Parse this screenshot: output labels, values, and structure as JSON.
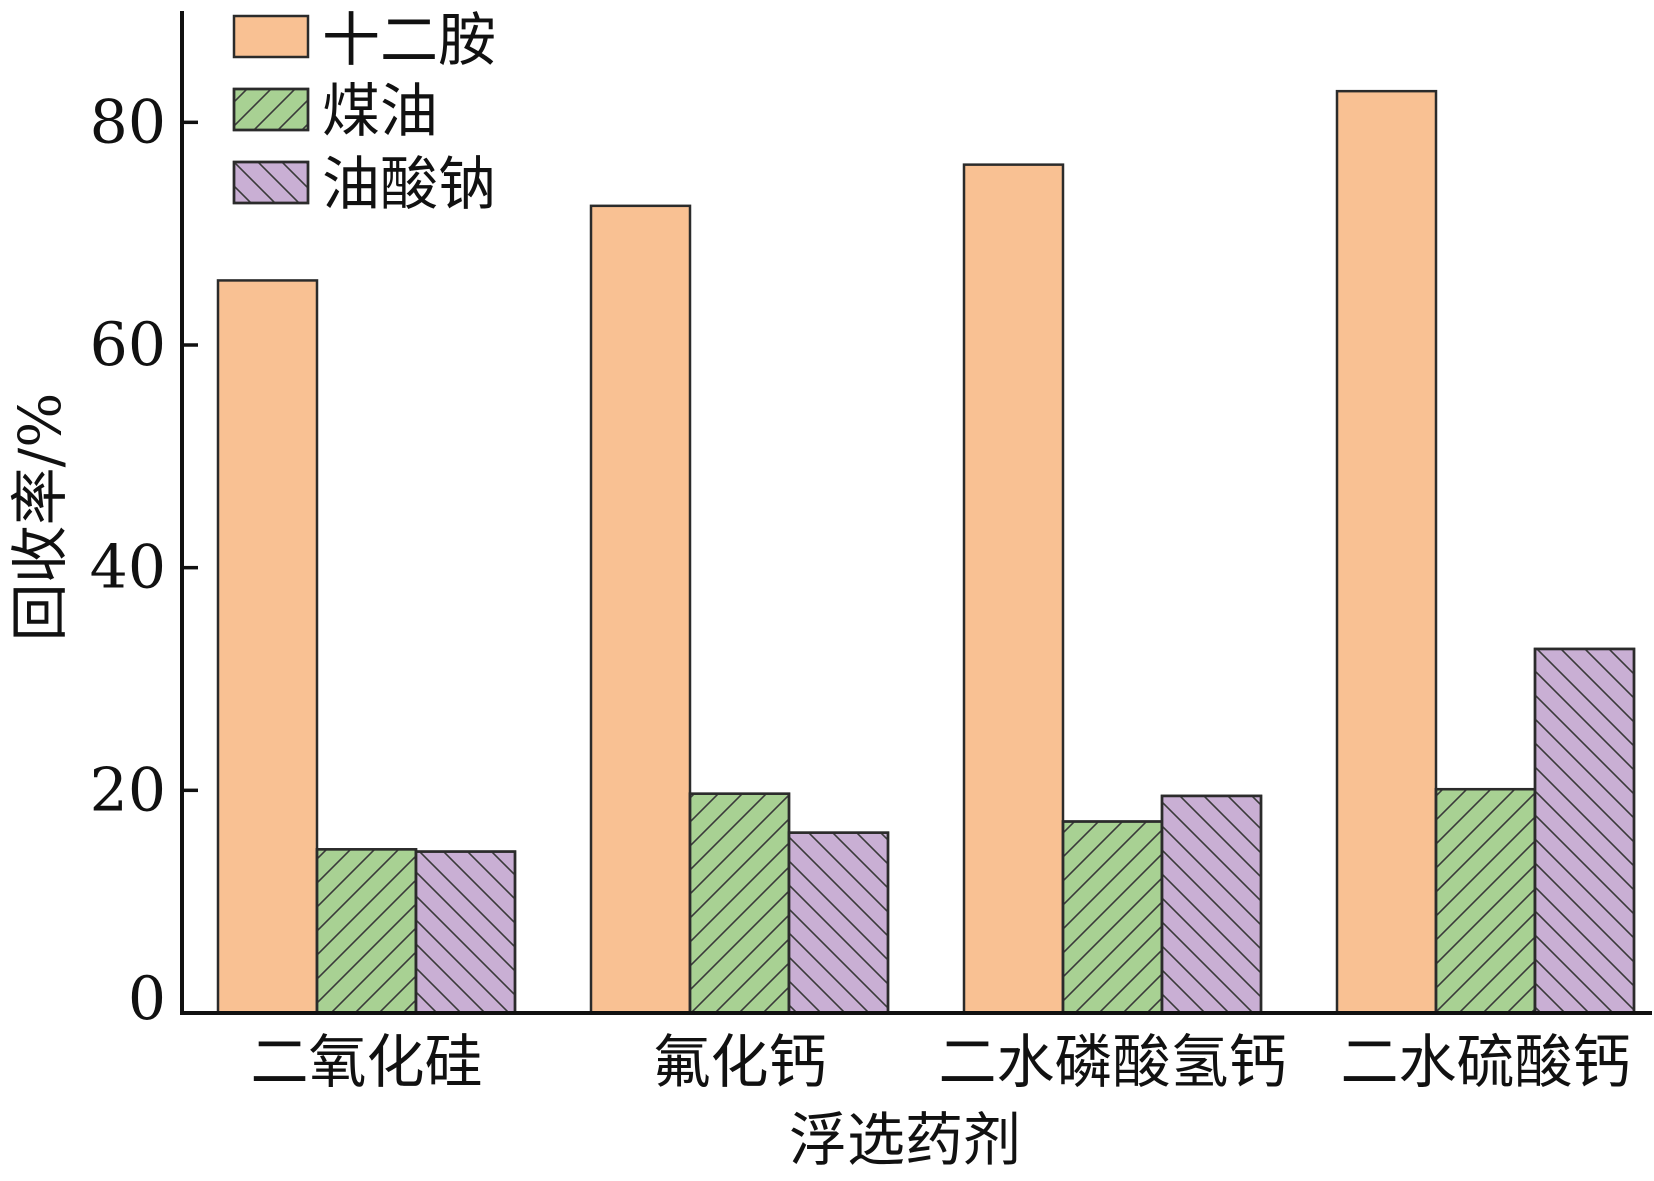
{
  "chart_data": {
    "type": "bar",
    "categories": [
      "二氧化硅",
      "氟化钙",
      "二水磷酸氢钙",
      "二水硫酸钙"
    ],
    "series": [
      {
        "name": "十二胺",
        "values": [
          65.8,
          72.5,
          76.2,
          82.8
        ],
        "color": "#F9C193",
        "pattern": "none"
      },
      {
        "name": "煤油",
        "values": [
          14.7,
          19.7,
          17.2,
          20.1
        ],
        "color": "#A8D193",
        "pattern": "forward-diagonal-hatch"
      },
      {
        "name": "油酸钠",
        "values": [
          14.5,
          16.2,
          19.5,
          32.7
        ],
        "color": "#C9AFD4",
        "pattern": "backward-diagonal-hatch"
      }
    ],
    "xlabel": "浮选药剂",
    "ylabel": "回收率/%",
    "ylim": [
      0,
      90
    ],
    "yticks": [
      0,
      20,
      40,
      60,
      80
    ],
    "grid": false,
    "legend": "top-left"
  }
}
